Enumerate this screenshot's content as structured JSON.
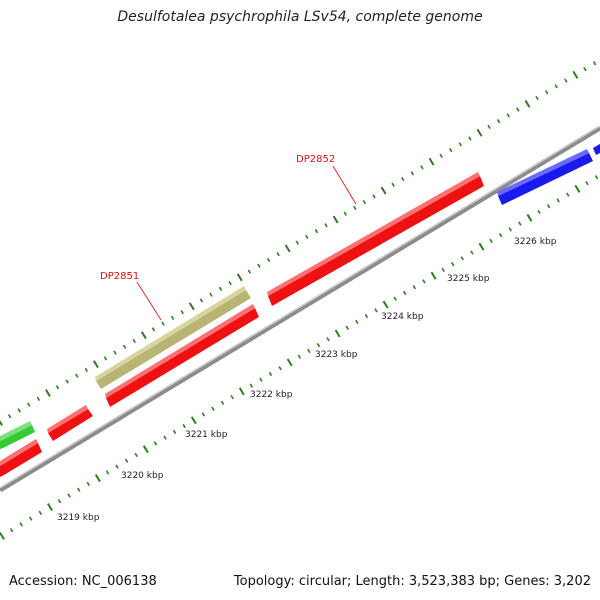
{
  "title": "Desulfotalea psychrophila LSv54, complete genome",
  "footer": {
    "accession": "Accession: NC_006138",
    "summary": "Topology: circular; Length: 3,523,383 bp; Genes: 3,202"
  },
  "colors": {
    "backbone": "#8c8c8c",
    "tick": "#2e7d1e",
    "gene_red": "#ee1111",
    "gene_khaki": "#b8b474",
    "gene_green": "#33cc33",
    "gene_blue": "#1a1aee",
    "label_red": "#e01010"
  },
  "kbp_labels": [
    "3219 kbp",
    "3220 kbp",
    "3221 kbp",
    "3222 kbp",
    "3223 kbp",
    "3224 kbp",
    "3225 kbp",
    "3226 kbp"
  ],
  "gene_labels": [
    "DP2851",
    "DP2852"
  ]
}
